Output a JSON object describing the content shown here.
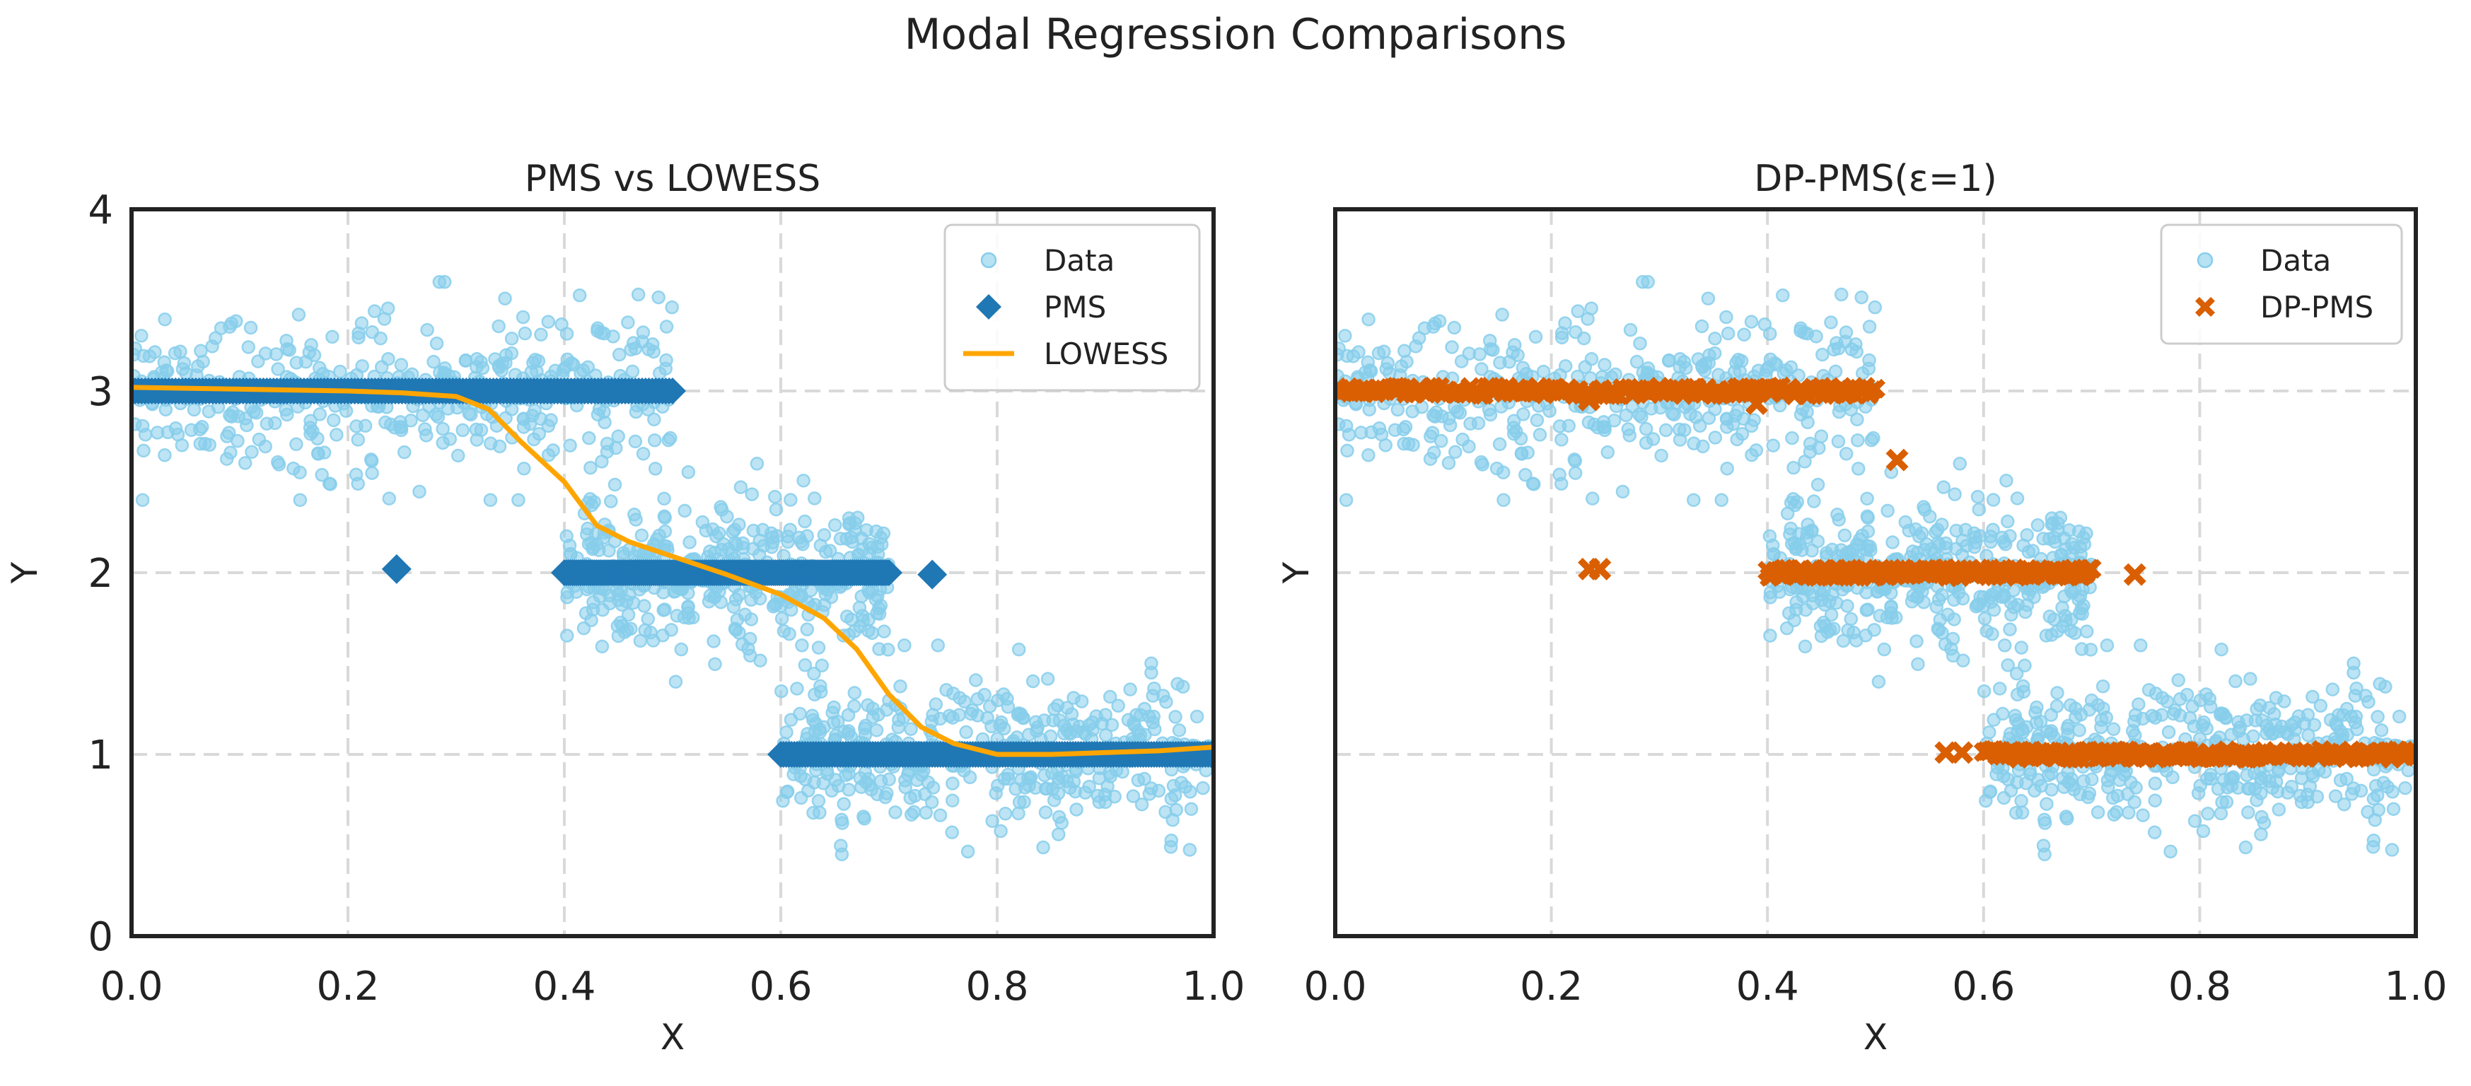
{
  "figure": {
    "title": "Modal Regression Comparisons"
  },
  "colors": {
    "data": "#87ceeb",
    "pms": "#1f77b4",
    "lowess": "#ffa500",
    "dp_pms": "#d95f02",
    "grid": "#d9d9d9",
    "spine": "#222222"
  },
  "chart_data": [
    {
      "type": "scatter",
      "title": "PMS vs LOWESS",
      "xlabel": "X",
      "ylabel": "Y",
      "xlim": [
        0.0,
        1.0
      ],
      "ylim": [
        0,
        4
      ],
      "xticks": [
        "0.0",
        "0.2",
        "0.4",
        "0.6",
        "0.8",
        "1.0"
      ],
      "yticks": [
        "0",
        "1",
        "2",
        "3",
        "4"
      ],
      "grid": true,
      "legend_position": "top-right",
      "data_regimes": [
        {
          "x_range": [
            0.0,
            0.5
          ],
          "y_mode": 3.0,
          "y_spread": 0.22,
          "y_min": 2.4,
          "y_max": 3.6
        },
        {
          "x_range": [
            0.4,
            0.7
          ],
          "y_mode": 2.0,
          "y_spread": 0.2,
          "y_min": 1.4,
          "y_max": 2.6
        },
        {
          "x_range": [
            0.6,
            1.0
          ],
          "y_mode": 1.0,
          "y_spread": 0.2,
          "y_min": 0.45,
          "y_max": 1.6
        }
      ],
      "series": [
        {
          "name": "Data",
          "kind": "scatter",
          "marker": "circle",
          "color": "#87ceeb"
        },
        {
          "name": "PMS",
          "kind": "scatter",
          "marker": "diamond",
          "color": "#1f77b4",
          "bands": [
            {
              "x_range": [
                0.0,
                0.5
              ],
              "y": 3.0
            },
            {
              "x_range": [
                0.4,
                0.7
              ],
              "y": 2.0
            },
            {
              "x_range": [
                0.6,
                1.0
              ],
              "y": 1.0
            }
          ],
          "outliers": [
            {
              "x": 0.245,
              "y": 2.02
            },
            {
              "x": 0.74,
              "y": 1.99
            }
          ]
        },
        {
          "name": "LOWESS",
          "kind": "line",
          "color": "#ffa500",
          "x": [
            0.0,
            0.1,
            0.2,
            0.25,
            0.3,
            0.33,
            0.36,
            0.4,
            0.43,
            0.46,
            0.5,
            0.55,
            0.6,
            0.64,
            0.67,
            0.7,
            0.73,
            0.76,
            0.8,
            0.85,
            0.9,
            0.95,
            1.0
          ],
          "y": [
            3.02,
            3.01,
            3.0,
            2.99,
            2.97,
            2.9,
            2.72,
            2.5,
            2.26,
            2.17,
            2.09,
            1.99,
            1.88,
            1.75,
            1.58,
            1.33,
            1.15,
            1.06,
            1.0,
            1.0,
            1.01,
            1.02,
            1.04
          ]
        }
      ]
    },
    {
      "type": "scatter",
      "title": "DP-PMS(ε=1)",
      "xlabel": "X",
      "ylabel": "Y",
      "xlim": [
        0.0,
        1.0
      ],
      "ylim": [
        0,
        4
      ],
      "xticks": [
        "0.0",
        "0.2",
        "0.4",
        "0.6",
        "0.8",
        "1.0"
      ],
      "yticks": [],
      "grid": true,
      "legend_position": "top-right",
      "series": [
        {
          "name": "Data",
          "kind": "scatter",
          "marker": "circle",
          "color": "#87ceeb"
        },
        {
          "name": "DP-PMS",
          "kind": "scatter",
          "marker": "x-filled",
          "color": "#d95f02",
          "bands": [
            {
              "x_range": [
                0.0,
                0.5
              ],
              "y": 3.0
            },
            {
              "x_range": [
                0.4,
                0.7
              ],
              "y": 2.0
            },
            {
              "x_range": [
                0.6,
                1.0
              ],
              "y": 1.0
            }
          ],
          "outliers": [
            {
              "x": 0.235,
              "y": 2.02
            },
            {
              "x": 0.245,
              "y": 2.02
            },
            {
              "x": 0.52,
              "y": 2.62
            },
            {
              "x": 0.74,
              "y": 1.99
            },
            {
              "x": 0.565,
              "y": 1.01
            },
            {
              "x": 0.58,
              "y": 1.01
            },
            {
              "x": 0.235,
              "y": 2.95
            },
            {
              "x": 0.39,
              "y": 2.93
            }
          ]
        }
      ]
    }
  ]
}
